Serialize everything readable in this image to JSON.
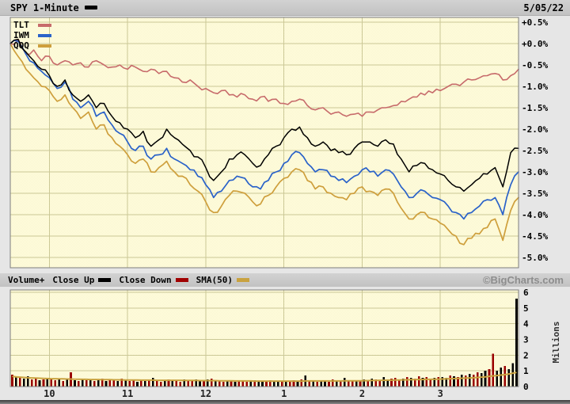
{
  "header": {
    "title": "SPY 1-Minute",
    "date": "5/05/22",
    "spy_color": "#000000"
  },
  "main_chart": {
    "legend": [
      {
        "label": "TLT",
        "color": "#c76b6b"
      },
      {
        "label": "IWM",
        "color": "#2a62c9"
      },
      {
        "label": "QQQ",
        "color": "#ce9f3c"
      }
    ],
    "y_axis_labels": [
      "+0.5%",
      "+0.0%",
      "-0.5%",
      "-1.0%",
      "-1.5%",
      "-2.0%",
      "-2.5%",
      "-3.0%",
      "-3.5%",
      "-4.0%",
      "-4.5%",
      "-5.0%"
    ]
  },
  "volume_bar": {
    "title_label": "Volume+",
    "items": [
      {
        "label": "Close Up",
        "color": "#000000"
      },
      {
        "label": "Close Down",
        "color": "#a00000"
      },
      {
        "label": "SMA(50)",
        "color": "#c9a23f"
      }
    ],
    "watermark": "©BigCharts.com"
  },
  "volume_axis": {
    "labels": [
      "6",
      "5",
      "4",
      "3",
      "2",
      "1",
      "0"
    ],
    "unit": "Millions"
  },
  "x_axis": {
    "labels": [
      "10",
      "11",
      "12",
      "1",
      "2",
      "3"
    ],
    "minutes": [
      30,
      90,
      150,
      210,
      270,
      330
    ]
  },
  "chart_data": [
    {
      "type": "line",
      "title": "SPY 1-minute intraday percent change vs TLT, IWM, QQQ (5/05/22, 9:30-16:00)",
      "x_unit": "minutes_after_0930",
      "x_start": 0,
      "x_step": 6,
      "x_end": 390,
      "ylim": [
        -5.0,
        0.5
      ],
      "y_tick_step": 0.5,
      "grid": true,
      "legend_position": "top-left",
      "render_noise": {
        "amplitude": 0.07,
        "seed": 7.13
      },
      "series": [
        {
          "name": "TLT",
          "color": "#c76b6b",
          "width": 1.6,
          "values": [
            0.0,
            0.1,
            -0.25,
            -0.15,
            -0.4,
            -0.3,
            -0.5,
            -0.4,
            -0.5,
            -0.45,
            -0.55,
            -0.4,
            -0.5,
            -0.55,
            -0.5,
            -0.6,
            -0.55,
            -0.65,
            -0.6,
            -0.7,
            -0.65,
            -0.8,
            -0.9,
            -0.85,
            -1.0,
            -1.05,
            -1.15,
            -1.1,
            -1.2,
            -1.25,
            -1.2,
            -1.3,
            -1.25,
            -1.35,
            -1.3,
            -1.4,
            -1.35,
            -1.3,
            -1.45,
            -1.55,
            -1.5,
            -1.65,
            -1.6,
            -1.7,
            -1.65,
            -1.7,
            -1.6,
            -1.55,
            -1.5,
            -1.45,
            -1.35,
            -1.3,
            -1.25,
            -1.2,
            -1.15,
            -1.1,
            -1.0,
            -0.95,
            -0.9,
            -0.85,
            -0.8,
            -0.75,
            -0.7,
            -0.85,
            -0.75,
            -0.6
          ]
        },
        {
          "name": "QQQ",
          "color": "#ce9f3c",
          "width": 1.7,
          "values": [
            0.0,
            -0.3,
            -0.6,
            -0.8,
            -1.0,
            -1.1,
            -1.35,
            -1.2,
            -1.5,
            -1.75,
            -1.6,
            -2.0,
            -1.9,
            -2.2,
            -2.4,
            -2.6,
            -2.8,
            -2.7,
            -3.0,
            -2.9,
            -2.75,
            -3.0,
            -3.1,
            -3.3,
            -3.45,
            -3.7,
            -3.95,
            -3.8,
            -3.55,
            -3.45,
            -3.5,
            -3.7,
            -3.75,
            -3.55,
            -3.35,
            -3.15,
            -3.0,
            -2.95,
            -3.2,
            -3.4,
            -3.35,
            -3.5,
            -3.6,
            -3.65,
            -3.5,
            -3.35,
            -3.45,
            -3.55,
            -3.4,
            -3.5,
            -3.85,
            -4.1,
            -4.0,
            -3.95,
            -4.1,
            -4.2,
            -4.35,
            -4.5,
            -4.7,
            -4.55,
            -4.45,
            -4.3,
            -4.1,
            -4.6,
            -3.9,
            -3.6
          ]
        },
        {
          "name": "IWM",
          "color": "#2a62c9",
          "width": 1.7,
          "values": [
            0.0,
            0.05,
            -0.25,
            -0.45,
            -0.65,
            -0.8,
            -1.05,
            -0.9,
            -1.3,
            -1.5,
            -1.35,
            -1.7,
            -1.6,
            -1.9,
            -2.1,
            -2.3,
            -2.5,
            -2.4,
            -2.7,
            -2.6,
            -2.45,
            -2.7,
            -2.8,
            -2.95,
            -3.1,
            -3.3,
            -3.6,
            -3.45,
            -3.2,
            -3.1,
            -3.15,
            -3.35,
            -3.4,
            -3.2,
            -3.0,
            -2.8,
            -2.6,
            -2.55,
            -2.8,
            -3.0,
            -2.95,
            -3.1,
            -3.2,
            -3.25,
            -3.1,
            -2.95,
            -3.0,
            -3.1,
            -2.95,
            -3.05,
            -3.35,
            -3.6,
            -3.5,
            -3.45,
            -3.6,
            -3.65,
            -3.8,
            -3.95,
            -4.1,
            -3.95,
            -3.8,
            -3.65,
            -3.6,
            -4.0,
            -3.3,
            -3.0
          ]
        },
        {
          "name": "SPY",
          "color": "#000000",
          "width": 1.5,
          "values": [
            0.0,
            0.1,
            -0.2,
            -0.4,
            -0.6,
            -0.75,
            -1.0,
            -0.85,
            -1.2,
            -1.35,
            -1.2,
            -1.5,
            -1.4,
            -1.7,
            -1.85,
            -2.0,
            -2.2,
            -2.05,
            -2.4,
            -2.25,
            -2.0,
            -2.2,
            -2.35,
            -2.5,
            -2.65,
            -2.9,
            -3.2,
            -3.0,
            -2.7,
            -2.6,
            -2.6,
            -2.8,
            -2.85,
            -2.6,
            -2.4,
            -2.2,
            -2.0,
            -1.95,
            -2.2,
            -2.4,
            -2.3,
            -2.5,
            -2.55,
            -2.6,
            -2.45,
            -2.3,
            -2.3,
            -2.4,
            -2.25,
            -2.35,
            -2.7,
            -3.0,
            -2.85,
            -2.8,
            -2.95,
            -3.05,
            -3.2,
            -3.35,
            -3.45,
            -3.3,
            -3.15,
            -3.05,
            -2.9,
            -3.35,
            -2.55,
            -2.45
          ]
        }
      ]
    },
    {
      "type": "bar",
      "title": "SPY volume, millions of shares (3-minute bars)",
      "bar_minutes": 3,
      "ylim": [
        0,
        6
      ],
      "ylabel": "Millions",
      "color_map": {
        "u": "#000000",
        "d": "#990000"
      },
      "bar_colors": "duduudduduudduduudupdudududdudduduuddududuudududddudduudungduduudduudududududduduududduduudduududud",
      "bar_colors_fixed": "duduudduduudduduudud",
      "colors": "duduudduduudduduudududduduududdudududdudduduuddududdudduudududdududdduduudduududdudududuuddududdudududduudddudud",
      "colors_v": "g",
      "bar_color_pattern": "duduuddududdudududududududdududdudududdududdudduudududdududdduduudduududdudududuuddududdudududduudddududdudduduududududduudduuduuu",
      "values": [
        0.75,
        0.6,
        0.55,
        0.5,
        0.65,
        0.45,
        0.5,
        0.4,
        0.45,
        0.55,
        0.45,
        0.4,
        0.5,
        0.35,
        0.45,
        0.9,
        0.4,
        0.35,
        0.5,
        0.4,
        0.45,
        0.35,
        0.4,
        0.5,
        0.35,
        0.45,
        0.4,
        0.35,
        0.5,
        0.4,
        0.35,
        0.4,
        0.3,
        0.45,
        0.35,
        0.4,
        0.55,
        0.35,
        0.3,
        0.4,
        0.45,
        0.35,
        0.4,
        0.3,
        0.45,
        0.4,
        0.35,
        0.45,
        0.4,
        0.35,
        0.45,
        0.5,
        0.4,
        0.35,
        0.3,
        0.4,
        0.35,
        0.3,
        0.35,
        0.4,
        0.3,
        0.35,
        0.4,
        0.35,
        0.3,
        0.35,
        0.4,
        0.3,
        0.35,
        0.3,
        0.35,
        0.3,
        0.4,
        0.35,
        0.45,
        0.7,
        0.4,
        0.35,
        0.3,
        0.4,
        0.35,
        0.3,
        0.45,
        0.4,
        0.35,
        0.55,
        0.4,
        0.35,
        0.4,
        0.35,
        0.45,
        0.4,
        0.5,
        0.45,
        0.4,
        0.6,
        0.45,
        0.5,
        0.55,
        0.45,
        0.5,
        0.6,
        0.55,
        0.5,
        0.65,
        0.55,
        0.6,
        0.5,
        0.55,
        0.6,
        0.6,
        0.55,
        0.7,
        0.65,
        0.6,
        0.75,
        0.7,
        0.8,
        0.75,
        0.9,
        0.85,
        1.0,
        1.1,
        2.1,
        1.0,
        1.2,
        1.3,
        1.1,
        1.5,
        5.6
      ],
      "sma50": [
        0.65,
        0.62,
        0.6,
        0.58,
        0.56,
        0.55,
        0.54,
        0.53,
        0.52,
        0.51,
        0.5,
        0.5,
        0.49,
        0.49,
        0.48,
        0.48,
        0.47,
        0.47,
        0.46,
        0.46,
        0.45,
        0.45,
        0.45,
        0.44,
        0.44,
        0.44,
        0.43,
        0.43,
        0.43,
        0.42,
        0.42,
        0.42,
        0.42,
        0.41,
        0.41,
        0.41,
        0.41,
        0.4,
        0.4,
        0.4,
        0.4,
        0.4,
        0.4,
        0.4,
        0.39,
        0.39,
        0.39,
        0.39,
        0.38,
        0.38,
        0.38,
        0.38,
        0.38,
        0.37,
        0.37,
        0.37,
        0.37,
        0.36,
        0.36,
        0.36,
        0.36,
        0.36,
        0.35,
        0.35,
        0.35,
        0.35,
        0.35,
        0.35,
        0.35,
        0.35,
        0.35,
        0.35,
        0.35,
        0.35,
        0.35,
        0.36,
        0.36,
        0.36,
        0.36,
        0.36,
        0.36,
        0.36,
        0.36,
        0.36,
        0.36,
        0.37,
        0.37,
        0.37,
        0.37,
        0.37,
        0.38,
        0.38,
        0.39,
        0.39,
        0.4,
        0.4,
        0.41,
        0.41,
        0.42,
        0.42,
        0.43,
        0.43,
        0.44,
        0.44,
        0.45,
        0.45,
        0.46,
        0.46,
        0.47,
        0.47,
        0.48,
        0.49,
        0.5,
        0.51,
        0.52,
        0.53,
        0.54,
        0.55,
        0.56,
        0.58,
        0.6,
        0.62,
        0.65,
        0.68,
        0.7,
        0.73,
        0.76,
        0.8,
        0.85,
        0.9
      ],
      "sma_color": "#c9a23f"
    }
  ]
}
